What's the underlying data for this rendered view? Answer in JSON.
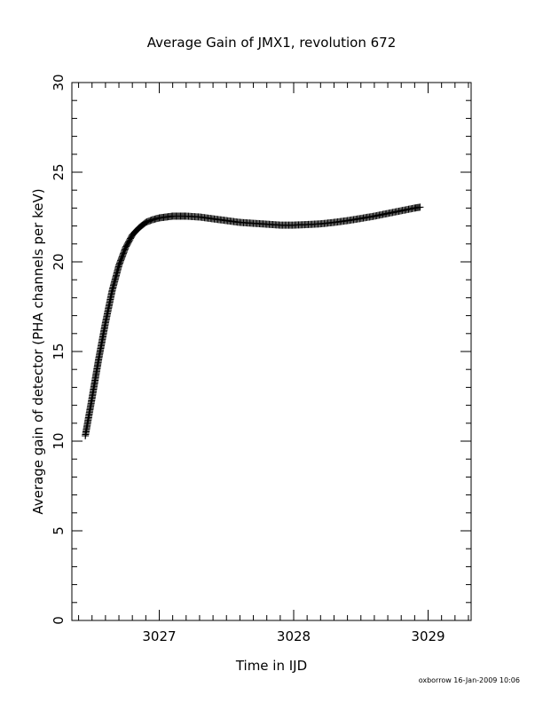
{
  "chart_data": {
    "type": "scatter",
    "title": "Average Gain of JMX1, revolution 672",
    "xlabel": "Time in IJD",
    "ylabel": "Average gain of detector (PHA channels per keV)",
    "xlim": [
      3026.35,
      3029.32
    ],
    "ylim": [
      0,
      30
    ],
    "xticks": [
      3027,
      3028,
      3029
    ],
    "xtick_labels": [
      "3027",
      "3028",
      "3029"
    ],
    "yticks": [
      0,
      5,
      10,
      15,
      20,
      25,
      30
    ],
    "ytick_labels": [
      "0",
      "5",
      "10",
      "15",
      "20",
      "25",
      "30"
    ],
    "x_minor_step": 0.1,
    "y_minor_step": 1,
    "grid": false,
    "marker": "plus",
    "color": "#000000",
    "x": [
      3026.45,
      3026.5,
      3026.55,
      3026.6,
      3026.65,
      3026.7,
      3026.75,
      3026.8,
      3026.85,
      3026.9,
      3026.95,
      3027.0,
      3027.05,
      3027.1,
      3027.15,
      3027.2,
      3027.3,
      3027.4,
      3027.5,
      3027.6,
      3027.7,
      3027.8,
      3027.9,
      3028.0,
      3028.1,
      3028.2,
      3028.3,
      3028.4,
      3028.5,
      3028.6,
      3028.7,
      3028.8,
      3028.9,
      3028.94
    ],
    "y": [
      10.3,
      12.4,
      14.6,
      16.6,
      18.4,
      19.8,
      20.8,
      21.5,
      21.9,
      22.2,
      22.35,
      22.45,
      22.5,
      22.55,
      22.55,
      22.55,
      22.5,
      22.4,
      22.3,
      22.2,
      22.15,
      22.1,
      22.05,
      22.05,
      22.08,
      22.12,
      22.2,
      22.3,
      22.42,
      22.55,
      22.7,
      22.85,
      23.0,
      23.05
    ]
  },
  "footer": "oxborrow 16-Jan-2009 10:06"
}
